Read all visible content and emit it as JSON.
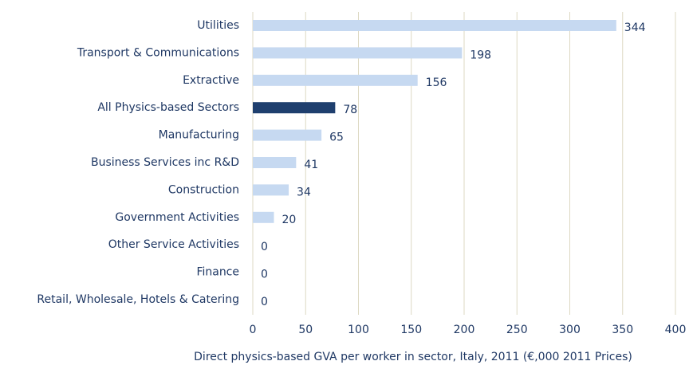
{
  "chart_data": {
    "type": "barh",
    "x_label": "Direct physics-based GVA per worker  in sector, Italy, 2011 (€,000 2011 Prices)",
    "categories": [
      "Utilities",
      "Transport & Communications",
      "Extractive",
      "All Physics-based Sectors",
      "Manufacturing",
      "Business Services inc R&D",
      "Construction",
      "Government Activities",
      "Other Service Activities",
      "Finance",
      "Retail, Wholesale, Hotels & Catering"
    ],
    "values": [
      344,
      198,
      156,
      78,
      65,
      41,
      34,
      20,
      0,
      0,
      0
    ],
    "colors": [
      "#c6d9f1",
      "#c6d9f1",
      "#c6d9f1",
      "#1f3f6e",
      "#c6d9f1",
      "#c6d9f1",
      "#c6d9f1",
      "#c6d9f1",
      "#c6d9f1",
      "#c6d9f1",
      "#c6d9f1"
    ],
    "xlim": [
      0,
      400
    ],
    "xticks": [
      0,
      50,
      100,
      150,
      200,
      250,
      300,
      350,
      400
    ],
    "grid": true
  }
}
